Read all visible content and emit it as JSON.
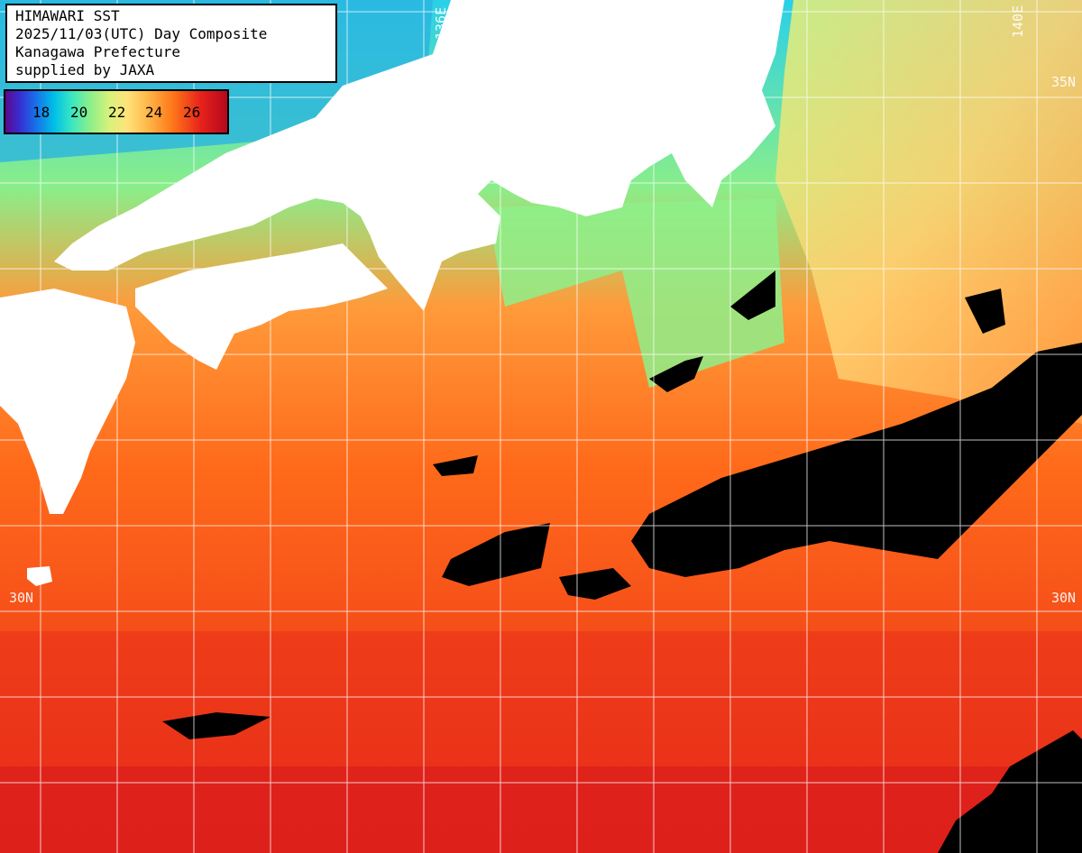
{
  "title_lines": [
    "HIMAWARI SST",
    "2025/11/03(UTC) Day Composite",
    "Kanagawa Prefecture",
    "supplied by JAXA"
  ],
  "legend": {
    "ticks": [
      "18",
      "20",
      "22",
      "24",
      "26"
    ],
    "colors": [
      "#5a0a8a",
      "#1a6ae8",
      "#00bfe8",
      "#8aef8a",
      "#ffe27a",
      "#ff7a1a",
      "#e8221a",
      "#b4081e"
    ]
  },
  "grid_labels": {
    "lon_136": "136E",
    "lon_140": "140E",
    "lat_35_right": "35N",
    "lat_30_left": "30N",
    "lat_30_right": "30N"
  },
  "colors": {
    "land": "#ffffff",
    "cloud": "#000000",
    "grid": "#ffffff"
  }
}
